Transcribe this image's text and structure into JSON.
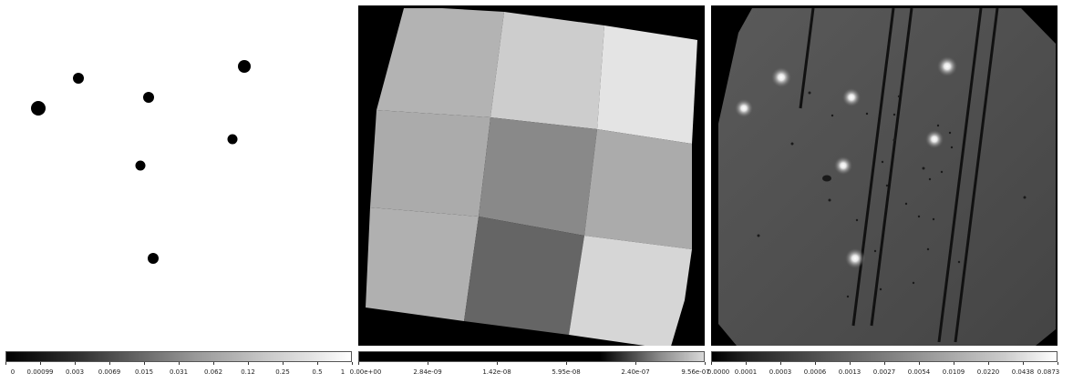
{
  "panels": [
    {
      "id": "mask",
      "colorbar": {
        "ticks": [
          "0",
          "0.00099",
          "0.003",
          "0.0069",
          "0.015",
          "0.031",
          "0.062",
          "0.12",
          "0.25",
          "0.5",
          "1"
        ]
      }
    },
    {
      "id": "exposure",
      "colorbar": {
        "ticks": [
          "0.00e+00",
          "2.84e-09",
          "1.42e-08",
          "5.95e-08",
          "2.40e-07",
          "9.56e-07"
        ]
      }
    },
    {
      "id": "science",
      "colorbar": {
        "ticks": [
          "0.0000",
          "0.0001",
          "0.0003",
          "0.0006",
          "0.0013",
          "0.0027",
          "0.0054",
          "0.0109",
          "0.0220",
          "0.0438",
          "0.0873"
        ]
      }
    }
  ]
}
